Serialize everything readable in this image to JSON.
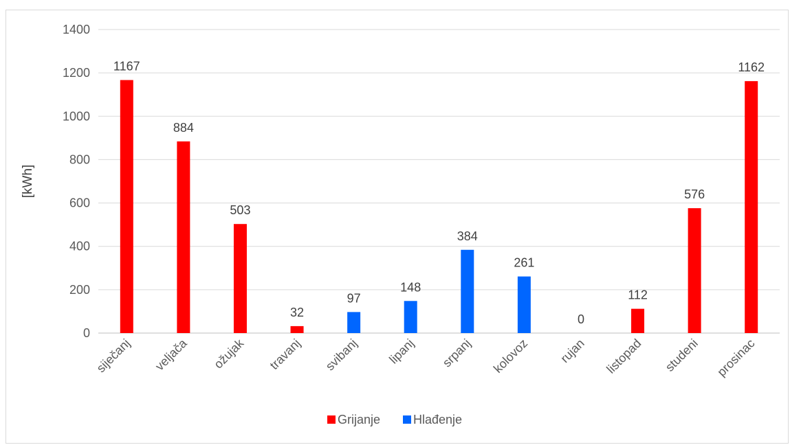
{
  "chart_data": {
    "type": "bar",
    "title": "",
    "xlabel": "",
    "ylabel": "[kWh]",
    "ylim": [
      0,
      1400
    ],
    "yticks": [
      0,
      200,
      400,
      600,
      800,
      1000,
      1200,
      1400
    ],
    "grid": true,
    "legend_position": "bottom",
    "categories": [
      "siječanj",
      "veljača",
      "ožujak",
      "travanj",
      "svibanj",
      "lipanj",
      "srpanj",
      "kolovoz",
      "rujan",
      "listopad",
      "studeni",
      "prosinac"
    ],
    "values": [
      1167,
      884,
      503,
      32,
      97,
      148,
      384,
      261,
      0,
      112,
      576,
      1162
    ],
    "bar_series": [
      "Grijanje",
      "Grijanje",
      "Grijanje",
      "Grijanje",
      "Hlađenje",
      "Hlađenje",
      "Hlađenje",
      "Hlađenje",
      "Grijanje",
      "Grijanje",
      "Grijanje",
      "Grijanje"
    ],
    "series": [
      {
        "name": "Grijanje",
        "color": "#ff0000"
      },
      {
        "name": "Hlađenje",
        "color": "#0066ff"
      }
    ]
  }
}
